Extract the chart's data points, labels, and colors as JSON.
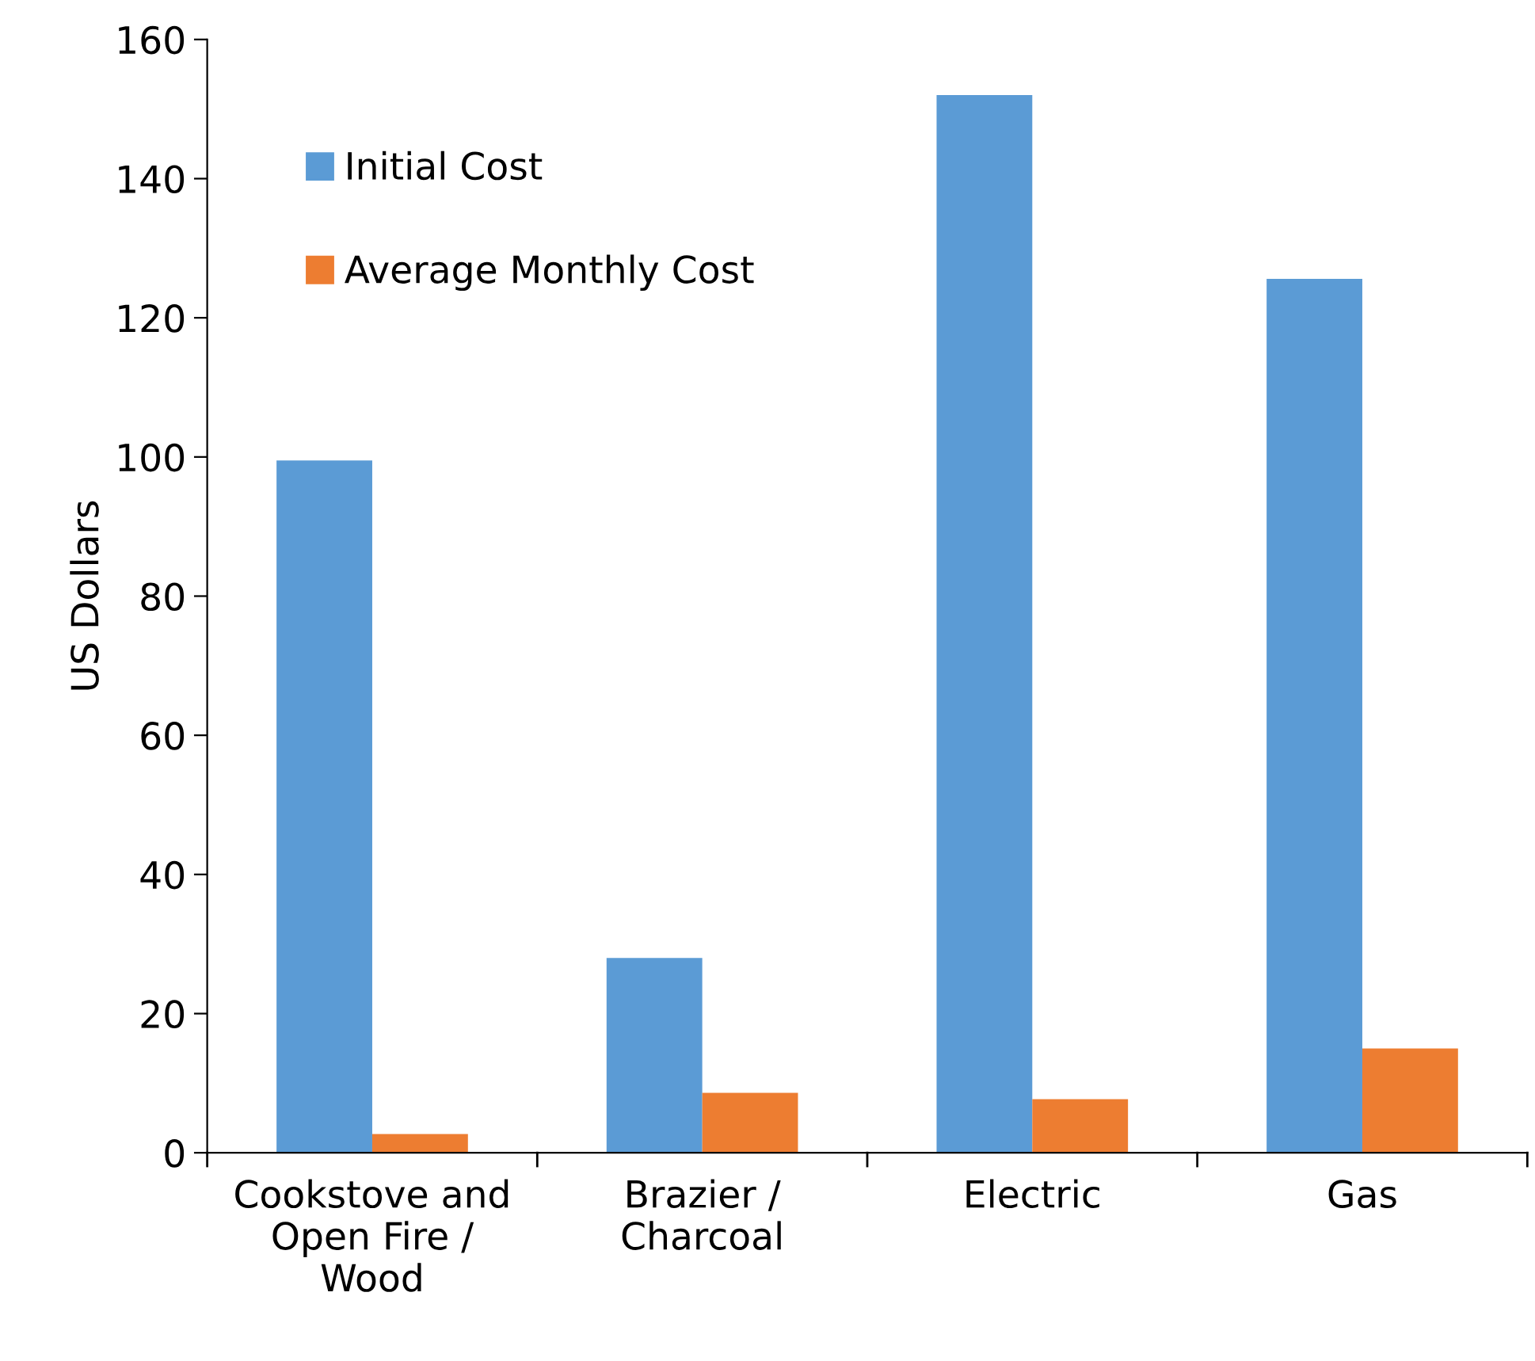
{
  "chart_data": {
    "type": "bar",
    "ylabel": "US Dollars",
    "categories": [
      "Cookstove and\nOpen Fire /\nWood",
      "Brazier /\nCharcoal",
      "Electric",
      "Gas"
    ],
    "series": [
      {
        "name": "Initial Cost",
        "color": "#5b9bd5",
        "values": [
          99.5,
          28,
          152,
          125.6
        ]
      },
      {
        "name": "Average Monthly Cost",
        "color": "#ed7d31",
        "values": [
          2.7,
          8.6,
          7.7,
          15
        ]
      }
    ],
    "ylim": [
      0,
      160
    ],
    "yticks": [
      0,
      20,
      40,
      60,
      80,
      100,
      120,
      140,
      160
    ],
    "grid": false,
    "legend": "top left"
  }
}
